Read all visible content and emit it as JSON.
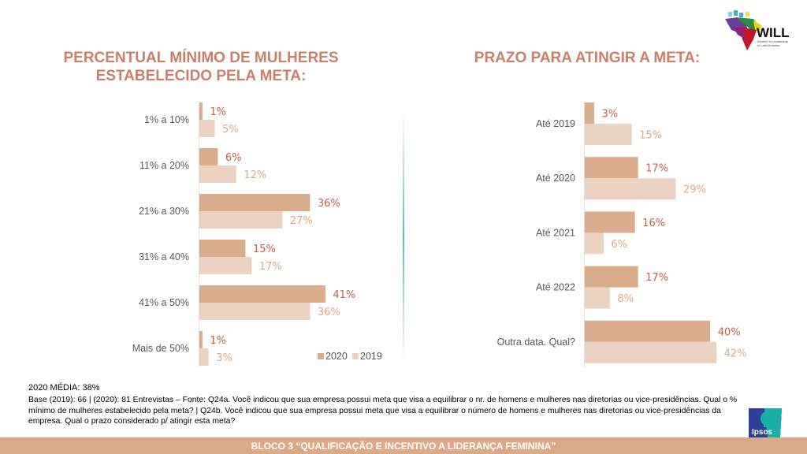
{
  "logos": {
    "top_right": "WILL",
    "top_right_tagline": "Women in Leadership in Latin America",
    "bottom_right": "Ipsos"
  },
  "colors": {
    "series_2020": "#d9ac8c",
    "series_2019": "#ecd2c0",
    "label_2020": "#c0604a",
    "label_2019": "#e0a882",
    "title": "#c8806a",
    "footer_bar": "#d9a98a",
    "divider": "#5bbcbc"
  },
  "chart_data": [
    {
      "type": "bar",
      "orientation": "horizontal",
      "title": "PERCENTUAL MÍNIMO DE MULHERES ESTABELECIDO PELA META:",
      "title_lines": [
        "PERCENTUAL MÍNIMO DE MULHERES",
        "ESTABELECIDO PELA META:"
      ],
      "categories": [
        "1% a 10%",
        "11% a 20%",
        "21% a 30%",
        "31% a 40%",
        "41% a 50%",
        "Mais de 50%"
      ],
      "series": [
        {
          "name": "2020",
          "values": [
            1,
            6,
            36,
            15,
            41,
            1
          ],
          "labels": [
            "1%",
            "6%",
            "36%",
            "15%",
            "41%",
            "1%"
          ]
        },
        {
          "name": "2019",
          "values": [
            5,
            12,
            27,
            17,
            36,
            3
          ],
          "labels": [
            "5%",
            "12%",
            "27%",
            "17%",
            "36%",
            "3%"
          ]
        }
      ],
      "xlim": [
        0,
        45
      ],
      "legend": {
        "position": "bottom-right",
        "entries": [
          "2020",
          "2019"
        ]
      },
      "grid": false
    },
    {
      "type": "bar",
      "orientation": "horizontal",
      "title": "PRAZO PARA ATINGIR A META:",
      "categories": [
        "Até 2019",
        "Até 2020",
        "Até 2021",
        "Até 2022",
        "Outra data. Qual?"
      ],
      "series": [
        {
          "name": "2020",
          "values": [
            3,
            17,
            16,
            17,
            40
          ],
          "labels": [
            "3%",
            "17%",
            "16%",
            "17%",
            "40%"
          ]
        },
        {
          "name": "2019",
          "values": [
            15,
            29,
            6,
            8,
            42
          ],
          "labels": [
            "15%",
            "29%",
            "6%",
            "8%",
            "42%"
          ]
        }
      ],
      "xlim": [
        0,
        45
      ],
      "grid": false
    }
  ],
  "notes": {
    "media": "2020 MÉDIA: 38%",
    "base": "Base (2019): 66 | (2020): 81 Entrevistas – Fonte: Q24a. Você indicou que sua empresa possui meta que visa a equilibrar o nr. de homens e mulheres nas diretorias ou vice-presidências. Qual o % mínimo de mulheres estabelecido pela meta? | Q24b. Você indicou que sua empresa possui meta que visa a equilibrar o número de homens e mulheres nas diretorias ou vice-presidências da empresa. Qual o prazo considerado p/ atingir esta meta?"
  },
  "footer": {
    "text": "BLOCO 3 “QUALIFICAÇÃO E INCENTIVO A LIDERANÇA  FEMININA”"
  }
}
